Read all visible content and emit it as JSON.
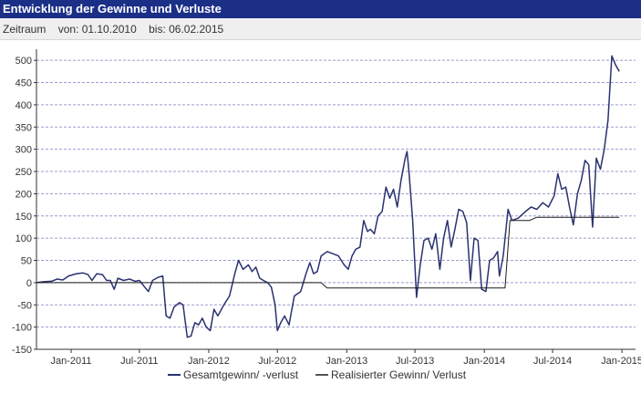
{
  "header": {
    "title": "Entwicklung der Gewinne und Verluste"
  },
  "period": {
    "label": "Zeitraum",
    "from": "von: 01.10.2010",
    "to": "bis: 06.02.2015"
  },
  "colors": {
    "header_bg": "#1b2f87",
    "series_total": "#2a3270",
    "series_realized": "#1a1a1a",
    "grid": "#9a9ad0",
    "axis": "#333333"
  },
  "chart_data": {
    "type": "line",
    "x_range": [
      "2010-10-01",
      "2015-02-06"
    ],
    "ylim": [
      -150,
      525
    ],
    "y_ticks": [
      -150,
      -100,
      -50,
      0,
      50,
      100,
      150,
      200,
      250,
      300,
      350,
      400,
      450,
      500
    ],
    "x_ticks": [
      {
        "date": "2011-01-01",
        "label": "Jan-2011"
      },
      {
        "date": "2011-07-01",
        "label": "Jul-2011"
      },
      {
        "date": "2012-01-01",
        "label": "Jan-2012"
      },
      {
        "date": "2012-07-01",
        "label": "Jul-2012"
      },
      {
        "date": "2013-01-01",
        "label": "Jan-2013"
      },
      {
        "date": "2013-07-01",
        "label": "Jul-2013"
      },
      {
        "date": "2014-01-01",
        "label": "Jan-2014"
      },
      {
        "date": "2014-07-01",
        "label": "Jul-2014"
      },
      {
        "date": "2015-01-01",
        "label": "Jan-2015"
      }
    ],
    "grid": "horizontal dashed",
    "legend_position": "bottom",
    "series": [
      {
        "name": "Gesamtgewinn/ -verlust",
        "points": [
          [
            "2010-10-01",
            0
          ],
          [
            "2010-10-20",
            2
          ],
          [
            "2010-11-10",
            3
          ],
          [
            "2010-11-25",
            8
          ],
          [
            "2010-12-10",
            6
          ],
          [
            "2010-12-25",
            15
          ],
          [
            "2011-01-15",
            20
          ],
          [
            "2011-02-01",
            22
          ],
          [
            "2011-02-15",
            18
          ],
          [
            "2011-02-25",
            5
          ],
          [
            "2011-03-10",
            20
          ],
          [
            "2011-03-25",
            18
          ],
          [
            "2011-04-05",
            5
          ],
          [
            "2011-04-15",
            5
          ],
          [
            "2011-04-25",
            -15
          ],
          [
            "2011-05-05",
            10
          ],
          [
            "2011-05-20",
            5
          ],
          [
            "2011-06-05",
            8
          ],
          [
            "2011-06-20",
            3
          ],
          [
            "2011-07-01",
            5
          ],
          [
            "2011-07-15",
            -10
          ],
          [
            "2011-07-25",
            -20
          ],
          [
            "2011-08-05",
            5
          ],
          [
            "2011-08-20",
            12
          ],
          [
            "2011-09-01",
            15
          ],
          [
            "2011-09-10",
            -75
          ],
          [
            "2011-09-20",
            -80
          ],
          [
            "2011-10-01",
            -55
          ],
          [
            "2011-10-15",
            -45
          ],
          [
            "2011-10-25",
            -50
          ],
          [
            "2011-11-05",
            -123
          ],
          [
            "2011-11-15",
            -120
          ],
          [
            "2011-11-25",
            -90
          ],
          [
            "2011-12-05",
            -95
          ],
          [
            "2011-12-15",
            -80
          ],
          [
            "2011-12-25",
            -100
          ],
          [
            "2012-01-05",
            -108
          ],
          [
            "2012-01-15",
            -60
          ],
          [
            "2012-01-25",
            -75
          ],
          [
            "2012-02-10",
            -50
          ],
          [
            "2012-02-25",
            -30
          ],
          [
            "2012-03-10",
            20
          ],
          [
            "2012-03-20",
            50
          ],
          [
            "2012-04-01",
            30
          ],
          [
            "2012-04-15",
            40
          ],
          [
            "2012-04-25",
            25
          ],
          [
            "2012-05-05",
            35
          ],
          [
            "2012-05-15",
            10
          ],
          [
            "2012-05-25",
            5
          ],
          [
            "2012-06-05",
            0
          ],
          [
            "2012-06-15",
            -10
          ],
          [
            "2012-06-25",
            -50
          ],
          [
            "2012-07-01",
            -108
          ],
          [
            "2012-07-10",
            -90
          ],
          [
            "2012-07-20",
            -75
          ],
          [
            "2012-08-01",
            -95
          ],
          [
            "2012-08-15",
            -30
          ],
          [
            "2012-09-01",
            -20
          ],
          [
            "2012-09-15",
            20
          ],
          [
            "2012-09-25",
            45
          ],
          [
            "2012-10-05",
            20
          ],
          [
            "2012-10-15",
            25
          ],
          [
            "2012-10-25",
            60
          ],
          [
            "2012-11-10",
            70
          ],
          [
            "2012-11-25",
            65
          ],
          [
            "2012-12-10",
            60
          ],
          [
            "2012-12-25",
            40
          ],
          [
            "2013-01-05",
            30
          ],
          [
            "2013-01-15",
            60
          ],
          [
            "2013-01-25",
            75
          ],
          [
            "2013-02-05",
            80
          ],
          [
            "2013-02-15",
            140
          ],
          [
            "2013-02-25",
            115
          ],
          [
            "2013-03-05",
            120
          ],
          [
            "2013-03-15",
            110
          ],
          [
            "2013-03-25",
            150
          ],
          [
            "2013-04-05",
            160
          ],
          [
            "2013-04-15",
            215
          ],
          [
            "2013-04-25",
            190
          ],
          [
            "2013-05-05",
            210
          ],
          [
            "2013-05-15",
            170
          ],
          [
            "2013-05-25",
            230
          ],
          [
            "2013-06-05",
            280
          ],
          [
            "2013-06-10",
            295
          ],
          [
            "2013-06-15",
            250
          ],
          [
            "2013-06-25",
            140
          ],
          [
            "2013-07-05",
            -33
          ],
          [
            "2013-07-15",
            40
          ],
          [
            "2013-07-25",
            95
          ],
          [
            "2013-08-05",
            100
          ],
          [
            "2013-08-15",
            75
          ],
          [
            "2013-08-25",
            110
          ],
          [
            "2013-09-05",
            30
          ],
          [
            "2013-09-15",
            100
          ],
          [
            "2013-09-25",
            140
          ],
          [
            "2013-10-05",
            80
          ],
          [
            "2013-10-15",
            120
          ],
          [
            "2013-10-25",
            165
          ],
          [
            "2013-11-05",
            160
          ],
          [
            "2013-11-15",
            135
          ],
          [
            "2013-11-25",
            5
          ],
          [
            "2013-12-05",
            100
          ],
          [
            "2013-12-15",
            95
          ],
          [
            "2013-12-25",
            -15
          ],
          [
            "2014-01-05",
            -20
          ],
          [
            "2014-01-15",
            50
          ],
          [
            "2014-01-25",
            55
          ],
          [
            "2014-02-05",
            70
          ],
          [
            "2014-02-10",
            15
          ],
          [
            "2014-02-20",
            60
          ],
          [
            "2014-03-05",
            165
          ],
          [
            "2014-03-15",
            140
          ],
          [
            "2014-04-01",
            145
          ],
          [
            "2014-04-20",
            160
          ],
          [
            "2014-05-05",
            170
          ],
          [
            "2014-05-20",
            165
          ],
          [
            "2014-06-05",
            180
          ],
          [
            "2014-06-20",
            170
          ],
          [
            "2014-07-05",
            195
          ],
          [
            "2014-07-15",
            245
          ],
          [
            "2014-07-25",
            210
          ],
          [
            "2014-08-05",
            215
          ],
          [
            "2014-08-15",
            170
          ],
          [
            "2014-08-25",
            130
          ],
          [
            "2014-09-05",
            200
          ],
          [
            "2014-09-15",
            230
          ],
          [
            "2014-09-25",
            275
          ],
          [
            "2014-10-05",
            265
          ],
          [
            "2014-10-15",
            125
          ],
          [
            "2014-10-25",
            280
          ],
          [
            "2014-11-05",
            255
          ],
          [
            "2014-11-15",
            300
          ],
          [
            "2014-11-25",
            365
          ],
          [
            "2014-12-05",
            510
          ],
          [
            "2014-12-15",
            490
          ],
          [
            "2014-12-25",
            475
          ]
        ]
      },
      {
        "name": "Realisierter Gewinn/ Verlust",
        "points": [
          [
            "2010-10-01",
            0
          ],
          [
            "2012-10-25",
            0
          ],
          [
            "2012-11-10",
            -12
          ],
          [
            "2014-02-25",
            -12
          ],
          [
            "2014-03-10",
            140
          ],
          [
            "2014-05-01",
            140
          ],
          [
            "2014-05-20",
            147
          ],
          [
            "2014-12-25",
            147
          ]
        ]
      }
    ]
  }
}
